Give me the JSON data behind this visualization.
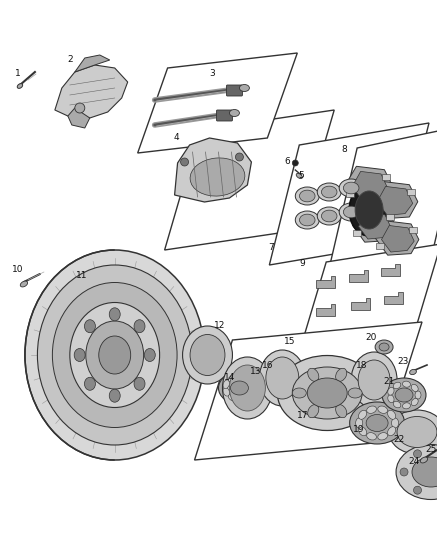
{
  "bg_color": "#ffffff",
  "fig_width": 4.38,
  "fig_height": 5.33,
  "dpi": 100,
  "line_color": "#222222",
  "part_color": "#888888",
  "part_edge": "#333333"
}
